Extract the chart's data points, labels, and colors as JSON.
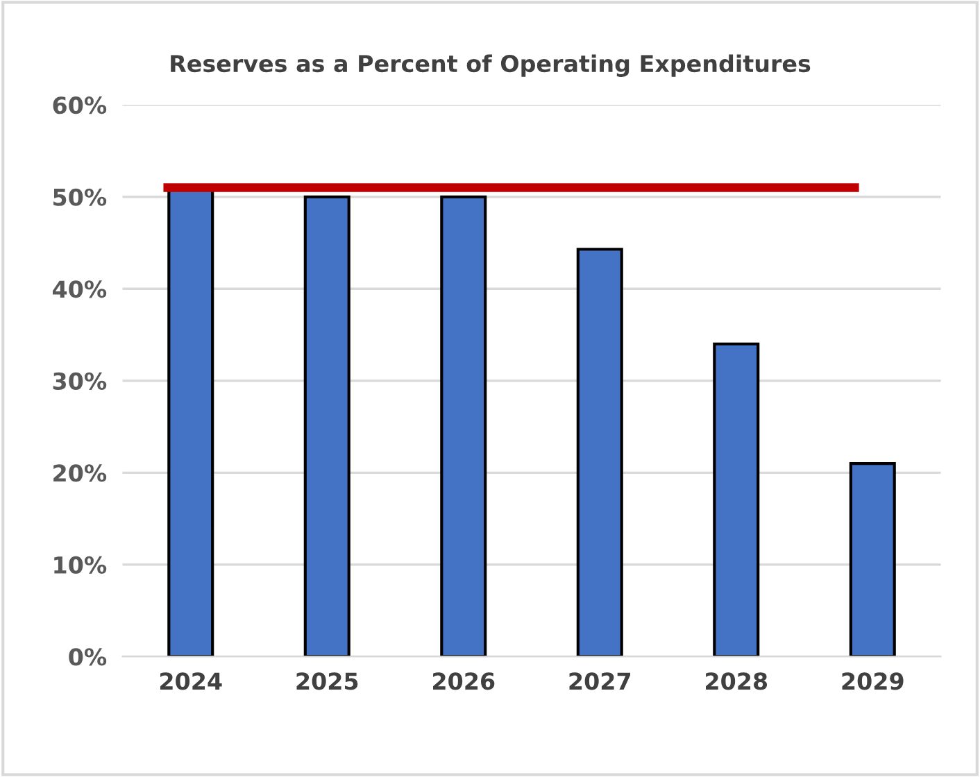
{
  "chart_data": {
    "type": "bar",
    "title": "Reserves as a Percent of Operating Expenditures",
    "categories": [
      "2024",
      "2025",
      "2026",
      "2027",
      "2028",
      "2029"
    ],
    "values": [
      51,
      50,
      50,
      44.3,
      34,
      21
    ],
    "color": "#4472c4",
    "ylim": [
      0,
      60
    ],
    "yticks": [
      {
        "value": 0,
        "label": "0%"
      },
      {
        "value": 10,
        "label": "10%"
      },
      {
        "value": 20,
        "label": "20%"
      },
      {
        "value": 30,
        "label": "30%"
      },
      {
        "value": 40,
        "label": "40%"
      },
      {
        "value": 50,
        "label": "50%"
      },
      {
        "value": 60,
        "label": "60%"
      }
    ],
    "grid": "y",
    "ref_lines": [
      {
        "axis": "y",
        "value": 51,
        "color": "#c00000",
        "line_style": "solid"
      }
    ]
  }
}
